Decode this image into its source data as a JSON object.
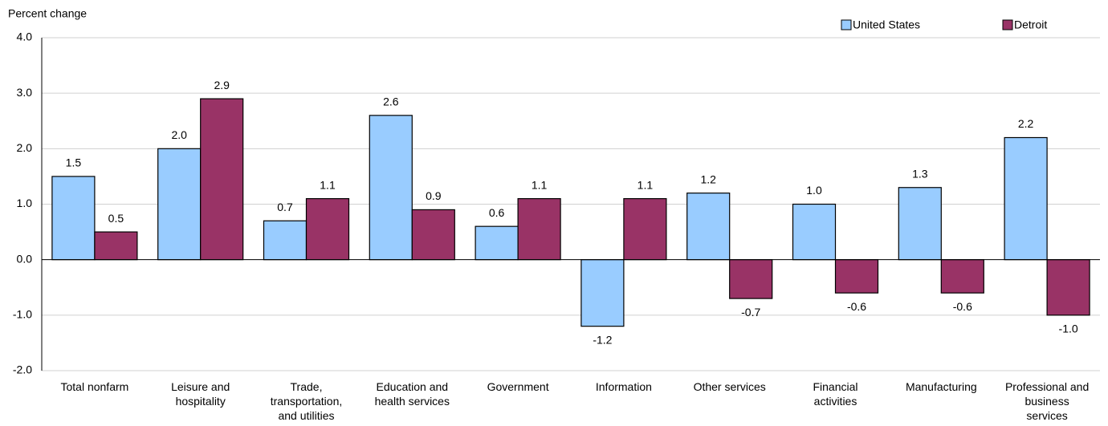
{
  "chart_data": {
    "type": "bar",
    "y_axis_label": "Percent change",
    "categories": [
      "Total nonfarm",
      "Leisure and\nhospitality",
      "Trade,\ntransportation,\nand utilities",
      "Education and\nhealth services",
      "Government",
      "Information",
      "Other services",
      "Financial\nactivities",
      "Manufacturing",
      "Professional and\nbusiness\nservices"
    ],
    "series": [
      {
        "name": "United States",
        "color": "#99ccff",
        "values": [
          1.5,
          2.0,
          0.7,
          2.6,
          0.6,
          -1.2,
          1.2,
          1.0,
          1.3,
          2.2
        ],
        "value_labels": [
          "1.5",
          "2.0",
          "0.7",
          "2.6",
          "0.6",
          "-1.2",
          "1.2",
          "1.0",
          "1.3",
          "2.2"
        ]
      },
      {
        "name": "Detroit",
        "color": "#993366",
        "values": [
          0.5,
          2.9,
          1.1,
          0.9,
          1.1,
          1.1,
          -0.7,
          -0.6,
          -0.6,
          -1.0
        ],
        "value_labels": [
          "0.5",
          "2.9",
          "1.1",
          "0.9",
          "1.1",
          "1.1",
          "-0.7",
          "-0.6",
          "-0.6",
          "-1.0"
        ]
      }
    ],
    "ylim": [
      -2,
      4
    ],
    "yticks": [
      {
        "value": -2,
        "label": "-2.0"
      },
      {
        "value": -1,
        "label": "-1.0"
      },
      {
        "value": 0,
        "label": "0.0"
      },
      {
        "value": 1,
        "label": "1.0"
      },
      {
        "value": 2,
        "label": "2.0"
      },
      {
        "value": 3,
        "label": "3.0"
      },
      {
        "value": 4,
        "label": "4.0"
      }
    ],
    "grid": true,
    "legend": "top-right"
  }
}
